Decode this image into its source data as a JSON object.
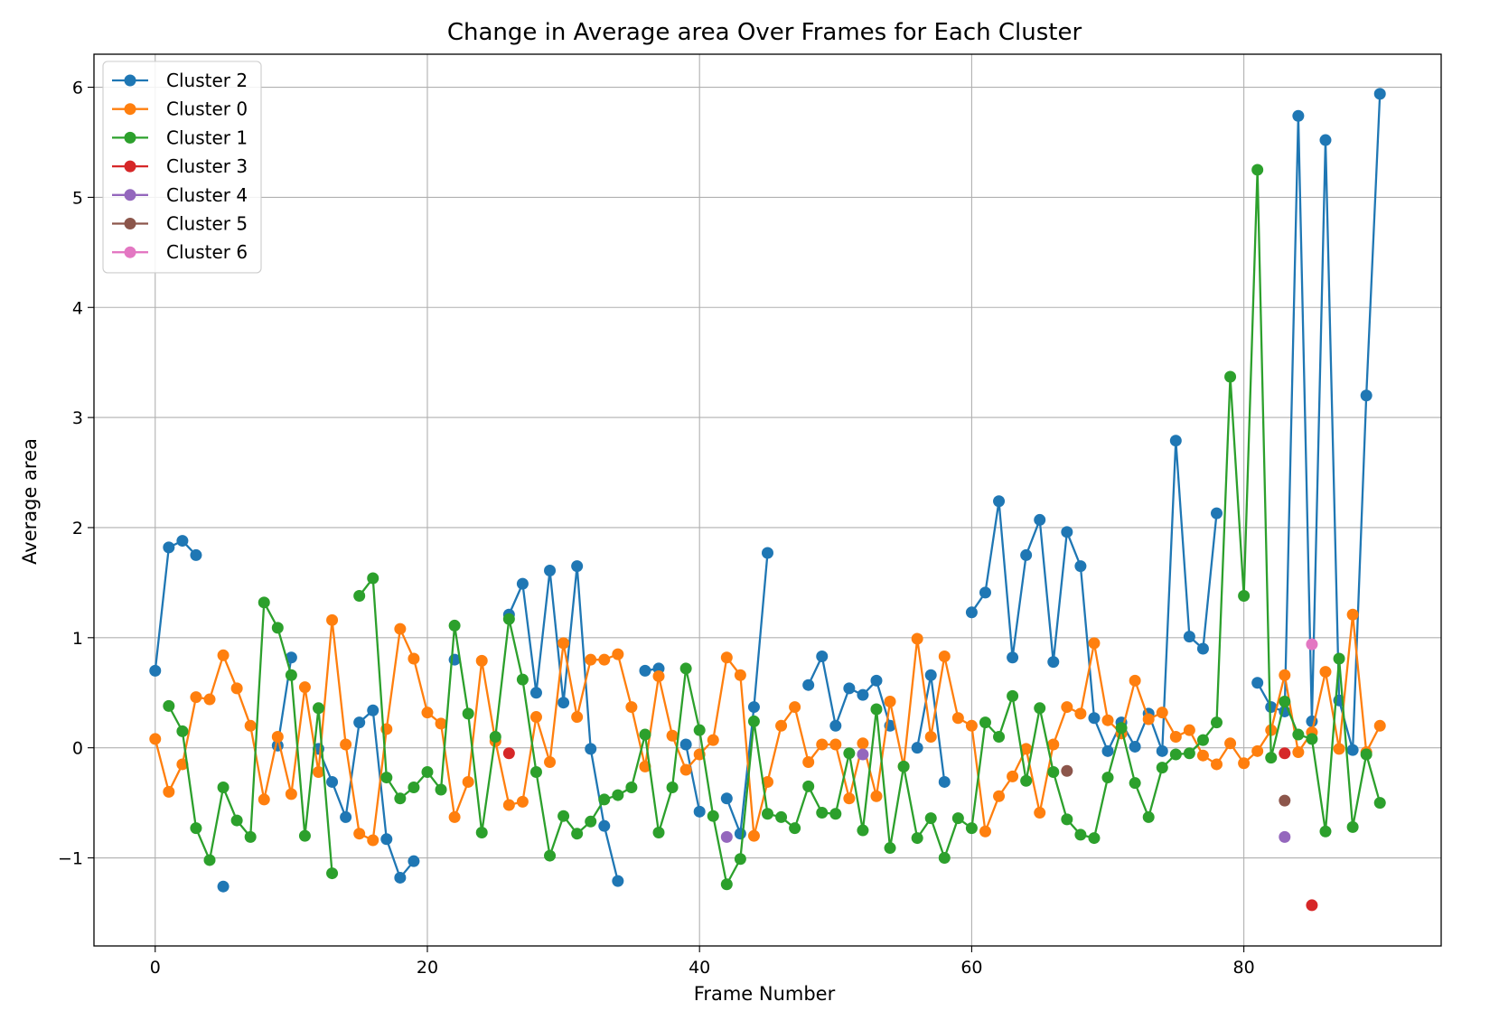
{
  "chart_data": {
    "type": "line",
    "title": "Change in Average area Over Frames for Each Cluster",
    "xlabel": "Frame Number",
    "ylabel": "Average area",
    "xlim": [
      -4.5,
      94.5
    ],
    "ylim": [
      -1.8,
      6.3
    ],
    "xticks": [
      0,
      20,
      40,
      60,
      80
    ],
    "yticks": [
      -1,
      0,
      1,
      2,
      3,
      4,
      5,
      6
    ],
    "ytick_labels": [
      "−1",
      "0",
      "1",
      "2",
      "3",
      "4",
      "5",
      "6"
    ],
    "grid": true,
    "legend_position": "upper-left",
    "series": [
      {
        "name": "Cluster 2",
        "color": "#1f77b4",
        "points": [
          [
            0,
            0.7
          ],
          [
            1,
            1.82
          ],
          [
            2,
            1.88
          ],
          [
            3,
            1.75
          ],
          null,
          [
            5,
            -1.26
          ],
          null,
          [
            9,
            0.02
          ],
          [
            10,
            0.82
          ],
          null,
          [
            12,
            -0.01
          ],
          [
            13,
            -0.31
          ],
          [
            14,
            -0.63
          ],
          [
            15,
            0.23
          ],
          [
            16,
            0.34
          ],
          [
            17,
            -0.83
          ],
          [
            18,
            -1.18
          ],
          [
            19,
            -1.03
          ],
          null,
          [
            22,
            0.8
          ],
          null,
          [
            26,
            1.21
          ],
          [
            27,
            1.49
          ],
          [
            28,
            0.5
          ],
          [
            29,
            1.61
          ],
          [
            30,
            0.41
          ],
          [
            31,
            1.65
          ],
          [
            32,
            -0.01
          ],
          [
            33,
            -0.71
          ],
          [
            34,
            -1.21
          ],
          null,
          [
            36,
            0.7
          ],
          [
            37,
            0.72
          ],
          null,
          [
            39,
            0.03
          ],
          [
            40,
            -0.58
          ],
          null,
          [
            42,
            -0.46
          ],
          [
            43,
            -0.78
          ],
          [
            44,
            0.37
          ],
          [
            45,
            1.77
          ],
          null,
          [
            48,
            0.57
          ],
          [
            49,
            0.83
          ],
          [
            50,
            0.2
          ],
          [
            51,
            0.54
          ],
          [
            52,
            0.48
          ],
          [
            53,
            0.61
          ],
          [
            54,
            0.2
          ],
          null,
          [
            56,
            0.0
          ],
          [
            57,
            0.66
          ],
          [
            58,
            -0.31
          ],
          null,
          [
            60,
            1.23
          ],
          [
            61,
            1.41
          ],
          [
            62,
            2.24
          ],
          [
            63,
            0.82
          ],
          [
            64,
            1.75
          ],
          [
            65,
            2.07
          ],
          [
            66,
            0.78
          ],
          [
            67,
            1.96
          ],
          [
            68,
            1.65
          ],
          [
            69,
            0.27
          ],
          [
            70,
            -0.03
          ],
          [
            71,
            0.23
          ],
          [
            72,
            0.01
          ],
          [
            73,
            0.31
          ],
          [
            74,
            -0.03
          ],
          [
            75,
            2.79
          ],
          [
            76,
            1.01
          ],
          [
            77,
            0.9
          ],
          [
            78,
            2.13
          ],
          null,
          [
            81,
            0.59
          ],
          [
            82,
            0.37
          ],
          [
            83,
            0.33
          ],
          [
            84,
            5.74
          ],
          [
            85,
            0.24
          ],
          [
            86,
            5.52
          ],
          [
            87,
            0.43
          ],
          [
            88,
            -0.02
          ],
          [
            89,
            3.2
          ],
          [
            90,
            5.94
          ]
        ]
      },
      {
        "name": "Cluster 0",
        "color": "#ff7f0e",
        "points": [
          [
            0,
            0.08
          ],
          [
            1,
            -0.4
          ],
          [
            2,
            -0.15
          ],
          [
            3,
            0.46
          ],
          [
            4,
            0.44
          ],
          [
            5,
            0.84
          ],
          [
            6,
            0.54
          ],
          [
            7,
            0.2
          ],
          [
            8,
            -0.47
          ],
          [
            9,
            0.1
          ],
          [
            10,
            -0.42
          ],
          [
            11,
            0.55
          ],
          [
            12,
            -0.22
          ],
          [
            13,
            1.16
          ],
          [
            14,
            0.03
          ],
          [
            15,
            -0.78
          ],
          [
            16,
            -0.84
          ],
          [
            17,
            0.17
          ],
          [
            18,
            1.08
          ],
          [
            19,
            0.81
          ],
          [
            20,
            0.32
          ],
          [
            21,
            0.22
          ],
          [
            22,
            -0.63
          ],
          [
            23,
            -0.31
          ],
          [
            24,
            0.79
          ],
          [
            25,
            0.06
          ],
          [
            26,
            -0.52
          ],
          [
            27,
            -0.49
          ],
          [
            28,
            0.28
          ],
          [
            29,
            -0.13
          ],
          [
            30,
            0.95
          ],
          [
            31,
            0.28
          ],
          [
            32,
            0.8
          ],
          [
            33,
            0.8
          ],
          [
            34,
            0.85
          ],
          [
            35,
            0.37
          ],
          [
            36,
            -0.17
          ],
          [
            37,
            0.65
          ],
          [
            38,
            0.11
          ],
          [
            39,
            -0.2
          ],
          [
            40,
            -0.06
          ],
          [
            41,
            0.07
          ],
          [
            42,
            0.82
          ],
          [
            43,
            0.66
          ],
          [
            44,
            -0.8
          ],
          [
            45,
            -0.31
          ],
          [
            46,
            0.2
          ],
          [
            47,
            0.37
          ],
          [
            48,
            -0.13
          ],
          [
            49,
            0.03
          ],
          [
            50,
            0.03
          ],
          [
            51,
            -0.46
          ],
          [
            52,
            0.04
          ],
          [
            53,
            -0.44
          ],
          [
            54,
            0.42
          ],
          [
            55,
            -0.17
          ],
          [
            56,
            0.99
          ],
          [
            57,
            0.1
          ],
          [
            58,
            0.83
          ],
          [
            59,
            0.27
          ],
          [
            60,
            0.2
          ],
          [
            61,
            -0.76
          ],
          [
            62,
            -0.44
          ],
          [
            63,
            -0.26
          ],
          [
            64,
            -0.01
          ],
          [
            65,
            -0.59
          ],
          [
            66,
            0.03
          ],
          [
            67,
            0.37
          ],
          [
            68,
            0.31
          ],
          [
            69,
            0.95
          ],
          [
            70,
            0.25
          ],
          [
            71,
            0.13
          ],
          [
            72,
            0.61
          ],
          [
            73,
            0.26
          ],
          [
            74,
            0.32
          ],
          [
            75,
            0.1
          ],
          [
            76,
            0.16
          ],
          [
            77,
            -0.07
          ],
          [
            78,
            -0.15
          ],
          [
            79,
            0.04
          ],
          [
            80,
            -0.14
          ],
          [
            81,
            -0.03
          ],
          [
            82,
            0.16
          ],
          [
            83,
            0.66
          ],
          [
            84,
            -0.04
          ],
          [
            85,
            0.14
          ],
          [
            86,
            0.69
          ],
          [
            87,
            -0.01
          ],
          [
            88,
            1.21
          ],
          [
            89,
            -0.04
          ],
          [
            90,
            0.2
          ]
        ]
      },
      {
        "name": "Cluster 1",
        "color": "#2ca02c",
        "points": [
          [
            1,
            0.38
          ],
          [
            2,
            0.15
          ],
          [
            3,
            -0.73
          ],
          [
            4,
            -1.02
          ],
          [
            5,
            -0.36
          ],
          [
            6,
            -0.66
          ],
          [
            7,
            -0.81
          ],
          [
            8,
            1.32
          ],
          [
            9,
            1.09
          ],
          [
            10,
            0.66
          ],
          [
            11,
            -0.8
          ],
          [
            12,
            0.36
          ],
          [
            13,
            -1.14
          ],
          null,
          [
            15,
            1.38
          ],
          [
            16,
            1.54
          ],
          [
            17,
            -0.27
          ],
          [
            18,
            -0.46
          ],
          [
            19,
            -0.36
          ],
          [
            20,
            -0.22
          ],
          [
            21,
            -0.38
          ],
          [
            22,
            1.11
          ],
          [
            23,
            0.31
          ],
          [
            24,
            -0.77
          ],
          [
            25,
            0.1
          ],
          [
            26,
            1.17
          ],
          [
            27,
            0.62
          ],
          [
            28,
            -0.22
          ],
          [
            29,
            -0.98
          ],
          [
            30,
            -0.62
          ],
          [
            31,
            -0.78
          ],
          [
            32,
            -0.67
          ],
          [
            33,
            -0.47
          ],
          [
            34,
            -0.43
          ],
          [
            35,
            -0.36
          ],
          [
            36,
            0.12
          ],
          [
            37,
            -0.77
          ],
          [
            38,
            -0.36
          ],
          [
            39,
            0.72
          ],
          [
            40,
            0.16
          ],
          [
            41,
            -0.62
          ],
          [
            42,
            -1.24
          ],
          [
            43,
            -1.01
          ],
          [
            44,
            0.24
          ],
          [
            45,
            -0.6
          ],
          [
            46,
            -0.63
          ],
          [
            47,
            -0.73
          ],
          [
            48,
            -0.35
          ],
          [
            49,
            -0.59
          ],
          [
            50,
            -0.6
          ],
          [
            51,
            -0.05
          ],
          [
            52,
            -0.75
          ],
          [
            53,
            0.35
          ],
          [
            54,
            -0.91
          ],
          [
            55,
            -0.17
          ],
          [
            56,
            -0.82
          ],
          [
            57,
            -0.64
          ],
          [
            58,
            -1.0
          ],
          [
            59,
            -0.64
          ],
          [
            60,
            -0.73
          ],
          [
            61,
            0.23
          ],
          [
            62,
            0.1
          ],
          [
            63,
            0.47
          ],
          [
            64,
            -0.3
          ],
          [
            65,
            0.36
          ],
          [
            66,
            -0.22
          ],
          [
            67,
            -0.65
          ],
          [
            68,
            -0.79
          ],
          [
            69,
            -0.82
          ],
          [
            70,
            -0.27
          ],
          [
            71,
            0.18
          ],
          [
            72,
            -0.32
          ],
          [
            73,
            -0.63
          ],
          [
            74,
            -0.18
          ],
          [
            75,
            -0.06
          ],
          [
            76,
            -0.05
          ],
          [
            77,
            0.07
          ],
          [
            78,
            0.23
          ],
          [
            79,
            3.37
          ],
          [
            80,
            1.38
          ],
          [
            81,
            5.25
          ],
          [
            82,
            -0.09
          ],
          [
            83,
            0.42
          ],
          [
            84,
            0.12
          ],
          [
            85,
            0.08
          ],
          [
            86,
            -0.76
          ],
          [
            87,
            0.81
          ],
          [
            88,
            -0.72
          ],
          [
            89,
            -0.06
          ],
          [
            90,
            -0.5
          ]
        ]
      },
      {
        "name": "Cluster 3",
        "color": "#d62728",
        "points": [
          [
            26,
            -0.05
          ],
          null,
          [
            83,
            -0.05
          ],
          null,
          [
            85,
            -1.43
          ]
        ]
      },
      {
        "name": "Cluster 4",
        "color": "#9467bd",
        "points": [
          [
            42,
            -0.81
          ],
          null,
          [
            52,
            -0.06
          ],
          null,
          [
            83,
            -0.81
          ]
        ]
      },
      {
        "name": "Cluster 5",
        "color": "#8c564b",
        "points": [
          [
            67,
            -0.21
          ],
          null,
          [
            83,
            -0.48
          ]
        ]
      },
      {
        "name": "Cluster 6",
        "color": "#e377c2",
        "points": [
          [
            85,
            0.94
          ]
        ]
      }
    ]
  }
}
